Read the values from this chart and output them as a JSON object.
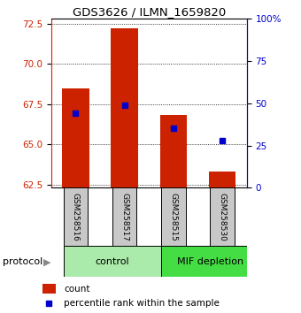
{
  "title": "GDS3626 / ILMN_1659820",
  "samples": [
    "GSM258516",
    "GSM258517",
    "GSM258515",
    "GSM258530"
  ],
  "groups": [
    "control",
    "control",
    "MIF depletion",
    "MIF depletion"
  ],
  "count_values": [
    68.5,
    72.2,
    66.8,
    63.3
  ],
  "count_base": 62.3,
  "percentile_values": [
    44.0,
    49.0,
    35.0,
    28.0
  ],
  "ylim_left": [
    62.3,
    72.8
  ],
  "ylim_right": [
    0,
    100
  ],
  "yticks_left": [
    62.5,
    65.0,
    67.5,
    70.0,
    72.5
  ],
  "yticks_right": [
    0,
    25,
    50,
    75,
    100
  ],
  "ytick_labels_right": [
    "0",
    "25",
    "50",
    "75",
    "100%"
  ],
  "bar_color": "#cc2200",
  "dot_color": "#0000cc",
  "sample_bg": "#c8c8c8",
  "control_bg": "#aaeaaa",
  "mif_bg": "#44dd44",
  "bar_width": 0.55,
  "protocol_label": "protocol",
  "group_labels": [
    "control",
    "MIF depletion"
  ],
  "legend_count": "count",
  "legend_pct": "percentile rank within the sample"
}
